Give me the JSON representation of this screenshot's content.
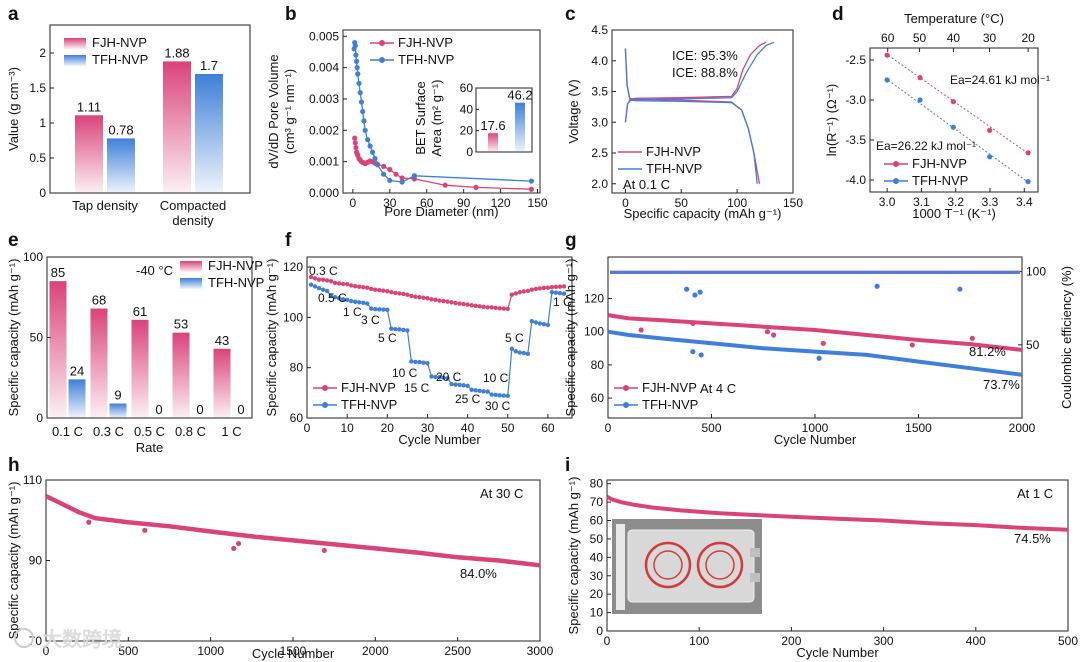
{
  "colors": {
    "fjh": "#d9437a",
    "tfh": "#3e7fd8",
    "fjh_light": "#f4c7d8",
    "tfh_light": "#c6dbf5",
    "axis": "#222222"
  },
  "watermark": "大数跨境",
  "chart_data": [
    {
      "id": "a",
      "panel_label": "a",
      "type": "bar",
      "ylabel": "Value (g cm⁻³)",
      "ylim": [
        0,
        2.4
      ],
      "yticks": [
        0,
        0.5,
        1.0,
        1.5,
        2.0
      ],
      "categories": [
        "Tap density",
        "Compacted density"
      ],
      "series": [
        {
          "name": "FJH-NVP",
          "color": "#d9437a",
          "values": [
            1.11,
            1.88
          ],
          "labels": [
            "1.11",
            "1.88"
          ]
        },
        {
          "name": "TFH-NVP",
          "color": "#3e7fd8",
          "values": [
            0.78,
            1.7
          ],
          "labels": [
            "0.78",
            "1.7"
          ]
        }
      ]
    },
    {
      "id": "b",
      "panel_label": "b",
      "type": "line",
      "xlabel": "Pore Diameter (nm)",
      "ylabel": "dV/dD Pore Volume",
      "ylabel2": "(cm³ g⁻¹ nm⁻¹)",
      "xlim": [
        -8,
        152
      ],
      "ylim": [
        0,
        0.0052
      ],
      "xticks": [
        0,
        30,
        60,
        90,
        120,
        150
      ],
      "yticks": [
        0.0,
        0.001,
        0.002,
        0.003,
        0.004,
        0.005
      ],
      "ytick_labels": [
        "0.000",
        "0.001",
        "0.002",
        "0.003",
        "0.004",
        "0.005"
      ],
      "series": [
        {
          "name": "FJH-NVP",
          "color": "#d9437a",
          "x": [
            1.5,
            2,
            2.5,
            3,
            3.5,
            4,
            5,
            6,
            7,
            8,
            9,
            10,
            12,
            14,
            16,
            18,
            20,
            25,
            30,
            35,
            40,
            50,
            75,
            100,
            145
          ],
          "y": [
            0.00175,
            0.0016,
            0.00145,
            0.0013,
            0.00125,
            0.0012,
            0.0011,
            0.00105,
            0.001,
            0.00098,
            0.00096,
            0.00094,
            0.00098,
            0.00102,
            0.001,
            0.00095,
            0.00092,
            0.00085,
            0.00075,
            0.0006,
            0.00048,
            0.00045,
            0.00025,
            0.00018,
            0.00012
          ]
        },
        {
          "name": "TFH-NVP",
          "color": "#3e7fd8",
          "x": [
            1,
            1.5,
            2,
            2.5,
            3,
            3.5,
            4,
            5,
            6,
            7,
            8,
            9,
            10,
            12,
            14,
            16,
            18,
            20,
            25,
            30,
            40,
            50,
            145
          ],
          "y": [
            0.0046,
            0.0048,
            0.0047,
            0.0044,
            0.0042,
            0.004,
            0.0038,
            0.0035,
            0.0032,
            0.0029,
            0.0026,
            0.0023,
            0.002,
            0.0017,
            0.0015,
            0.0013,
            0.0011,
            0.0009,
            0.0006,
            0.0004,
            0.00035,
            0.00055,
            0.00038
          ]
        }
      ],
      "legend": [
        "FJH-NVP",
        "TFH-NVP"
      ],
      "inset": {
        "ylabel": "BET Surface Area (m² g⁻¹)",
        "ylim": [
          0,
          60
        ],
        "yticks": [
          0,
          20,
          40,
          60
        ],
        "values": [
          17.6,
          46.2
        ],
        "labels": [
          "17.6",
          "46.2"
        ]
      }
    },
    {
      "id": "c",
      "panel_label": "c",
      "type": "line",
      "xlabel": "Specific capacity (mAh g⁻¹)",
      "ylabel": "Voltage (V)",
      "xlim": [
        -12,
        150
      ],
      "ylim": [
        1.85,
        4.5
      ],
      "xticks": [
        0,
        50,
        100,
        150
      ],
      "yticks": [
        2.0,
        2.5,
        3.0,
        3.5,
        4.0,
        4.5
      ],
      "annotations": [
        {
          "text": "ICE: 95.3%",
          "color": "#d9437a"
        },
        {
          "text": "ICE: 88.8%",
          "color": "#3e7fd8"
        },
        {
          "text": "At 0.1 C",
          "color": "#111111"
        }
      ],
      "legend": [
        "FJH-NVP",
        "TFH-NVP"
      ],
      "series": [
        {
          "name": "FJH-NVP charge",
          "color": "#d9437a",
          "x": [
            0,
            2,
            5,
            10,
            50,
            95,
            100,
            105,
            112,
            120,
            126
          ],
          "y": [
            3.0,
            3.3,
            3.38,
            3.39,
            3.4,
            3.42,
            3.55,
            3.85,
            4.1,
            4.25,
            4.3
          ]
        },
        {
          "name": "FJH-NVP discharge",
          "color": "#d9437a",
          "x": [
            0,
            1.5,
            4,
            10,
            50,
            95,
            104,
            110,
            115,
            120
          ],
          "y": [
            4.2,
            3.6,
            3.38,
            3.37,
            3.36,
            3.33,
            3.2,
            2.9,
            2.5,
            2.0
          ]
        },
        {
          "name": "TFH-NVP charge",
          "color": "#3e7fd8",
          "x": [
            0,
            2,
            5,
            10,
            50,
            95,
            100,
            108,
            118,
            126,
            133
          ],
          "y": [
            3.0,
            3.3,
            3.36,
            3.37,
            3.38,
            3.4,
            3.5,
            3.8,
            4.1,
            4.25,
            4.3
          ]
        },
        {
          "name": "TFH-NVP discharge",
          "color": "#3e7fd8",
          "x": [
            0,
            1.5,
            4,
            10,
            50,
            95,
            104,
            110,
            115,
            118
          ],
          "y": [
            4.2,
            3.6,
            3.36,
            3.35,
            3.34,
            3.32,
            3.2,
            2.9,
            2.5,
            2.0
          ]
        }
      ]
    },
    {
      "id": "d",
      "panel_label": "d",
      "type": "scatter",
      "xlabel": "1000 T⁻¹ (K⁻¹)",
      "ylabel": "ln(R⁻¹) (Ω⁻¹)",
      "top_xlabel": "Temperature (°C)",
      "top_ticks": [
        60,
        50,
        40,
        30,
        20
      ],
      "xlim": [
        2.95,
        3.44
      ],
      "ylim": [
        -4.15,
        -2.35
      ],
      "xticks": [
        3.0,
        3.1,
        3.2,
        3.3,
        3.4
      ],
      "yticks": [
        -2.5,
        -3.0,
        -3.5,
        -4.0
      ],
      "annotations": [
        {
          "text": "Ea=24.61 kJ mol⁻¹",
          "color": "#d9437a"
        },
        {
          "text": "Ea=26.22 kJ mol⁻¹",
          "color": "#3e7fd8"
        }
      ],
      "legend": [
        "FJH-NVP",
        "TFH-NVP"
      ],
      "series": [
        {
          "name": "FJH-NVP",
          "color": "#d9437a",
          "x": [
            3.0,
            3.096,
            3.193,
            3.299,
            3.411
          ],
          "y": [
            -2.44,
            -2.72,
            -3.02,
            -3.38,
            -3.66
          ]
        },
        {
          "name": "TFH-NVP",
          "color": "#3e7fd8",
          "x": [
            3.0,
            3.096,
            3.193,
            3.299,
            3.411
          ],
          "y": [
            -2.75,
            -3.0,
            -3.34,
            -3.71,
            -4.02
          ]
        }
      ]
    },
    {
      "id": "e",
      "panel_label": "e",
      "type": "bar",
      "xlabel": "Rate",
      "ylabel": "Specific capacity (mAh g⁻¹)",
      "ylim": [
        0,
        100
      ],
      "yticks": [
        0,
        50,
        100
      ],
      "categories": [
        "0.1 C",
        "0.3 C",
        "0.5 C",
        "0.8 C",
        "1 C"
      ],
      "annotation": "-40 °C",
      "series": [
        {
          "name": "FJH-NVP",
          "color": "#d9437a",
          "values": [
            85,
            68,
            61,
            53,
            43
          ],
          "labels": [
            "85",
            "68",
            "61",
            "53",
            "43"
          ]
        },
        {
          "name": "TFH-NVP",
          "color": "#3e7fd8",
          "values": [
            24,
            9,
            0,
            0,
            0
          ],
          "labels": [
            "24",
            "9",
            "0",
            "0",
            "0"
          ]
        }
      ]
    },
    {
      "id": "f",
      "panel_label": "f",
      "type": "line",
      "xlabel": "Cycle Number",
      "ylabel": "Specific capacity (mAh g⁻¹)",
      "xlim": [
        0,
        66
      ],
      "ylim": [
        60,
        124
      ],
      "xticks": [
        0,
        10,
        20,
        30,
        40,
        50,
        60
      ],
      "yticks": [
        60,
        80,
        100,
        120
      ],
      "legend": [
        "FJH-NVP",
        "TFH-NVP"
      ],
      "rate_labels": [
        "0.3 C",
        "0.5 C",
        "1 C",
        "3 C",
        "5 C",
        "10 C",
        "15 C",
        "20 C",
        "25 C",
        "30 C",
        "10 C",
        "5 C",
        "1 C"
      ],
      "series": [
        {
          "name": "FJH-NVP",
          "color": "#d9437a",
          "y": [
            116,
            115.5,
            115,
            115,
            114.7,
            114.4,
            113.7,
            113.5,
            113.3,
            113.2,
            112.7,
            112.4,
            112.2,
            112,
            111.8,
            111.3,
            111,
            110.8,
            110.6,
            110.4,
            110,
            109.7,
            109.5,
            109.3,
            109,
            108.5,
            108.2,
            108,
            107.8,
            107.6,
            107.2,
            107,
            106.7,
            106.5,
            106.3,
            106,
            105.7,
            105.5,
            105.3,
            105.1,
            104.8,
            104.6,
            104.4,
            104.2,
            104,
            104,
            103.8,
            103.6,
            103.5,
            103.4,
            109,
            109.5,
            110,
            110.3,
            110.5,
            111,
            111.3,
            111.5,
            111.7,
            111.8,
            112,
            112.1,
            112.2,
            112.3
          ]
        },
        {
          "name": "TFH-NVP",
          "color": "#3e7fd8",
          "y": [
            113,
            112.3,
            111.6,
            111,
            110.5,
            108.5,
            108,
            107.6,
            107.2,
            107,
            106.5,
            106.2,
            106,
            105.8,
            105.5,
            103.5,
            103.3,
            103.2,
            103.1,
            103,
            95.5,
            95.3,
            95.2,
            95,
            94.8,
            82.5,
            82.3,
            82.2,
            82,
            81.8,
            76.5,
            76.3,
            76.2,
            76,
            75.8,
            73.5,
            73.3,
            73.2,
            73,
            72.8,
            71.2,
            71,
            70.8,
            70.6,
            70.5,
            69.3,
            69.2,
            69,
            68.9,
            68.8,
            87.5,
            86.5,
            86,
            85.8,
            85.5,
            98.5,
            98,
            97.6,
            97.3,
            97,
            110,
            109.8,
            109.6,
            109.4
          ]
        }
      ]
    },
    {
      "id": "g",
      "panel_label": "g",
      "type": "scatter",
      "xlabel": "Cycle Number",
      "ylabel": "Specific capacity (mAh g⁻¹)",
      "ylabel_right": "Coulombic efficiency (%)",
      "xlim": [
        0,
        2000
      ],
      "ylim": [
        48,
        145
      ],
      "xticks": [
        0,
        500,
        1000,
        1500,
        2000
      ],
      "yticks": [
        60,
        80,
        100,
        120
      ],
      "y2lim": [
        0,
        110
      ],
      "y2ticks": [
        50,
        100
      ],
      "annotations": [
        {
          "text": "At 4 C",
          "color": "#111111"
        },
        {
          "text": "81.2%",
          "color": "#d9437a"
        },
        {
          "text": "73.7%",
          "color": "#3e7fd8"
        }
      ],
      "legend": [
        "FJH-NVP",
        "TFH-NVP"
      ],
      "series": [
        {
          "name": "FJH-NVP",
          "color": "#d9437a",
          "x": [
            0,
            100,
            250,
            500,
            750,
            1000,
            1250,
            1500,
            1750,
            2000
          ],
          "y": [
            110,
            108,
            107,
            105,
            103,
            101,
            98,
            95,
            92.5,
            89
          ],
          "outliers_x": [
            160,
            410,
            770,
            800,
            1040,
            1470,
            1760
          ],
          "outliers_y": [
            101,
            105,
            100,
            98,
            93,
            92,
            96
          ],
          "ce": 99.5
        },
        {
          "name": "TFH-NVP",
          "color": "#3e7fd8",
          "x": [
            0,
            100,
            250,
            500,
            750,
            1000,
            1250,
            1500,
            1750,
            2000
          ],
          "y": [
            100,
            98,
            96,
            93,
            90,
            88,
            86,
            82,
            78,
            74
          ],
          "outliers_x": [
            410,
            450,
            1020
          ],
          "outliers_y": [
            88,
            86,
            84
          ],
          "ce": 99.5,
          "ce_outliers_x": [
            380,
            420,
            445,
            1300,
            1700
          ],
          "ce_outliers_y": [
            88,
            84,
            86,
            90,
            88
          ]
        }
      ]
    },
    {
      "id": "h",
      "panel_label": "h",
      "type": "scatter",
      "xlabel": "Cycle Number",
      "ylabel": "Specific capacity (mAh g⁻¹)",
      "xlim": [
        0,
        3000
      ],
      "ylim": [
        70,
        110
      ],
      "xticks": [
        0,
        500,
        1000,
        1500,
        2000,
        2500,
        3000
      ],
      "yticks": [
        70,
        90,
        110
      ],
      "annotations": [
        {
          "text": "At 30 C",
          "color": "#111111"
        },
        {
          "text": "84.0%",
          "color": "#111111"
        }
      ],
      "series": [
        {
          "name": "FJH-NVP",
          "color": "#d9437a",
          "x": [
            0,
            100,
            200,
            300,
            500,
            750,
            1000,
            1250,
            1500,
            1750,
            2000,
            2250,
            2500,
            2750,
            3000
          ],
          "y": [
            106,
            104,
            102,
            100.5,
            99.5,
            98.5,
            97.2,
            96,
            95,
            94,
            93,
            92,
            90.8,
            90,
            88.8
          ],
          "outliers_x": [
            260,
            600,
            1140,
            1170,
            1690
          ],
          "outliers_y": [
            99.5,
            97.5,
            93,
            94.2,
            92.5
          ]
        }
      ]
    },
    {
      "id": "i",
      "panel_label": "i",
      "type": "scatter",
      "xlabel": "Cycle Number",
      "ylabel": "Specific capacity (mAh g⁻¹)",
      "xlim": [
        0,
        500
      ],
      "ylim": [
        0,
        82
      ],
      "xticks": [
        0,
        100,
        200,
        300,
        400,
        500
      ],
      "yticks": [
        0,
        10,
        20,
        30,
        40,
        50,
        60,
        70,
        80
      ],
      "annotations": [
        {
          "text": "At 1 C",
          "color": "#111111"
        },
        {
          "text": "74.5%",
          "color": "#111111"
        }
      ],
      "series": [
        {
          "name": "FJH-NVP",
          "color": "#d9437a",
          "x": [
            0,
            5,
            15,
            30,
            50,
            80,
            120,
            160,
            200,
            250,
            300,
            350,
            400,
            450,
            500
          ],
          "y": [
            73,
            71.5,
            70,
            68.5,
            67,
            65.5,
            64,
            63,
            62,
            61,
            60,
            58.5,
            57.5,
            56,
            55
          ]
        }
      ]
    }
  ]
}
